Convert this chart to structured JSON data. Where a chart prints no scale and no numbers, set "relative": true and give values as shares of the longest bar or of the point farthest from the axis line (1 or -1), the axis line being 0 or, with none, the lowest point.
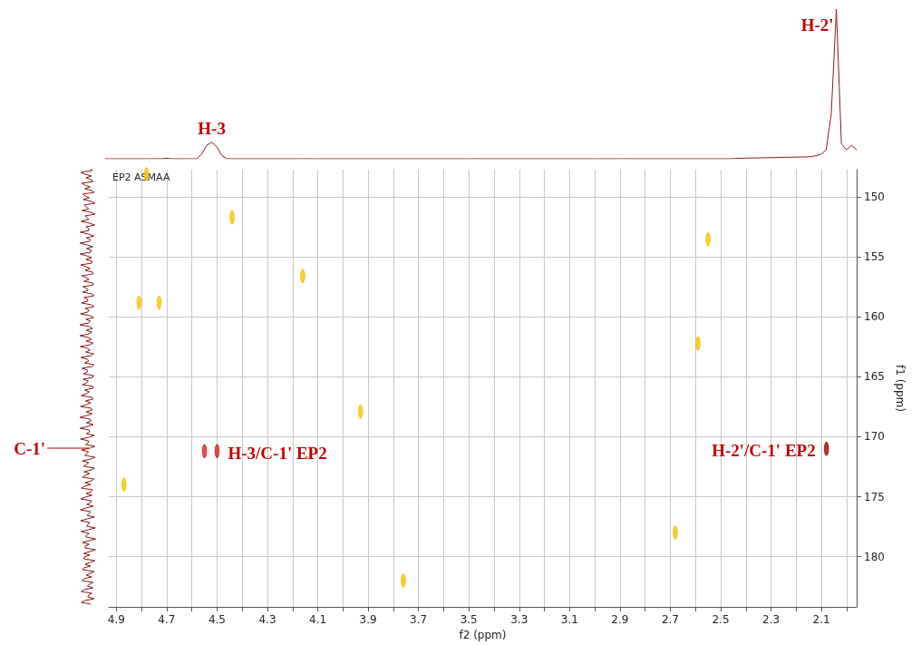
{
  "chart_data": [
    {
      "type": "line",
      "relative": true,
      "tick_labels": false,
      "grid": false,
      "marker": "none",
      "line_style": "solid",
      "categories": [
        null,
        null,
        null,
        null,
        null,
        null,
        null,
        null,
        null,
        null,
        null,
        null,
        null,
        null,
        null,
        null,
        null,
        null,
        null,
        null,
        null,
        null,
        null,
        null,
        null,
        null,
        null,
        null,
        null,
        null,
        null,
        null,
        null,
        null,
        null,
        null,
        null,
        null,
        null,
        null,
        null,
        null,
        null,
        null,
        null,
        null,
        null,
        null,
        null,
        null,
        null,
        null,
        null,
        null,
        null,
        null,
        null,
        null,
        null,
        null,
        null,
        null,
        null,
        null,
        null,
        null,
        null,
        null,
        null,
        null,
        null,
        null,
        null,
        null,
        null,
        null,
        null,
        null,
        null,
        null,
        null,
        null,
        null,
        null,
        null,
        null,
        null,
        null,
        null,
        null,
        null,
        null,
        null,
        null,
        null,
        null,
        null,
        null,
        null,
        null,
        null,
        null,
        null,
        null,
        null,
        null,
        null,
        null,
        null,
        null,
        null,
        null,
        null,
        null,
        null,
        null,
        null,
        null,
        null,
        null,
        null,
        null,
        null,
        null,
        null,
        null,
        null,
        null,
        null,
        null,
        null,
        null,
        null,
        null,
        null,
        null,
        null,
        null,
        null,
        null,
        null,
        null,
        null,
        null,
        null,
        null,
        null,
        null,
        null
      ],
      "series": [
        {
          "color": "#8b1a1a",
          "values": [
            0,
            0,
            0,
            0,
            0,
            0,
            0,
            0,
            0,
            0,
            0,
            0,
            0.004,
            0,
            0,
            0,
            0,
            0,
            0,
            0.03,
            0.09,
            0.11,
            0.08,
            0.02,
            0,
            0,
            0,
            0,
            0,
            0,
            0,
            0,
            0,
            0,
            0,
            0,
            0,
            0,
            0,
            0,
            0,
            0,
            0,
            0,
            0,
            0,
            0,
            0,
            0,
            0,
            0,
            0,
            0,
            0,
            0,
            0,
            0,
            0,
            0,
            0,
            0,
            0,
            0,
            0,
            0,
            0,
            0,
            0,
            0,
            0,
            0,
            0,
            0,
            0,
            0,
            0,
            0,
            0,
            0,
            0,
            0,
            0,
            0,
            0,
            0,
            0,
            0,
            0,
            0,
            0,
            0,
            0,
            0,
            0,
            0,
            0,
            0,
            0,
            0,
            0,
            0,
            0,
            0,
            0,
            0,
            0,
            0,
            0,
            0,
            0,
            0,
            0,
            0,
            0,
            0,
            0,
            0,
            0,
            0,
            0,
            0,
            0,
            0,
            0,
            0.002,
            0.003,
            0.004,
            0.005,
            0.005,
            0.006,
            0.007,
            0.007,
            0.008,
            0.009,
            0.01,
            0.01,
            0.011,
            0.012,
            0.012,
            0.015,
            0.02,
            0.03,
            0.06,
            0.3,
            1,
            0.1,
            0.06,
            0.09,
            0.06
          ]
        }
      ],
      "annotations": [
        "H-3",
        "H-2'"
      ]
    },
    {
      "type": "scatter",
      "xlabel": "f2 (ppm)",
      "ylabel": "f1 (ppm)",
      "grid": true,
      "marker": "circle",
      "xlim": [
        4.93,
        1.96
      ],
      "ylim": [
        184.2,
        147.7
      ],
      "xticks": [
        4.9,
        {
          "value": 4.8,
          "label": null
        },
        4.7,
        {
          "value": 4.6,
          "label": null
        },
        4.5,
        {
          "value": 4.4,
          "label": null
        },
        4.3,
        {
          "value": 4.2,
          "label": null
        },
        4.1,
        {
          "value": 4.0,
          "label": null
        },
        3.9,
        {
          "value": 3.8,
          "label": null
        },
        3.7,
        {
          "value": 3.6,
          "label": null
        },
        3.5,
        {
          "value": 3.4,
          "label": null
        },
        3.3,
        {
          "value": 3.2,
          "label": null
        },
        3.1,
        {
          "value": 3.0,
          "label": null
        },
        2.9,
        {
          "value": 2.8,
          "label": null
        },
        2.7,
        {
          "value": 2.6,
          "label": null
        },
        2.5,
        {
          "value": 2.4,
          "label": null
        },
        2.3,
        {
          "value": 2.2,
          "label": null
        },
        2.1,
        {
          "value": 2.0,
          "label": null
        }
      ],
      "yticks": [
        150,
        155,
        160,
        165,
        170,
        175,
        180
      ],
      "x": [
        4.78,
        4.44,
        4.16,
        4.81,
        4.73,
        3.93,
        4.55,
        4.5,
        4.87,
        3.76,
        2.55,
        2.59,
        2.68,
        2.08
      ],
      "values": [
        148.1,
        151.7,
        156.6,
        158.8,
        158.8,
        167.9,
        171.2,
        171.2,
        174.0,
        182.0,
        153.5,
        162.2,
        178.0,
        171.0
      ],
      "colors": [
        "#f2c200",
        "#f2c200",
        "#f2c200",
        "#f2c200",
        "#f2c200",
        "#f2c200",
        "#d42020",
        "#d42020",
        "#f2c200",
        "#f2c200",
        "#f2c200",
        "#f2c200",
        "#f2c200",
        "#a00000"
      ],
      "annotations": [
        "EP2 ASMAA",
        {
          "text": "H-3/C-1' EP2",
          "x": 4.5,
          "y": 171.2
        },
        {
          "text": "H-2'/C-1' EP2",
          "x": 2.08,
          "y": 171.0
        },
        "C-1'"
      ]
    }
  ]
}
